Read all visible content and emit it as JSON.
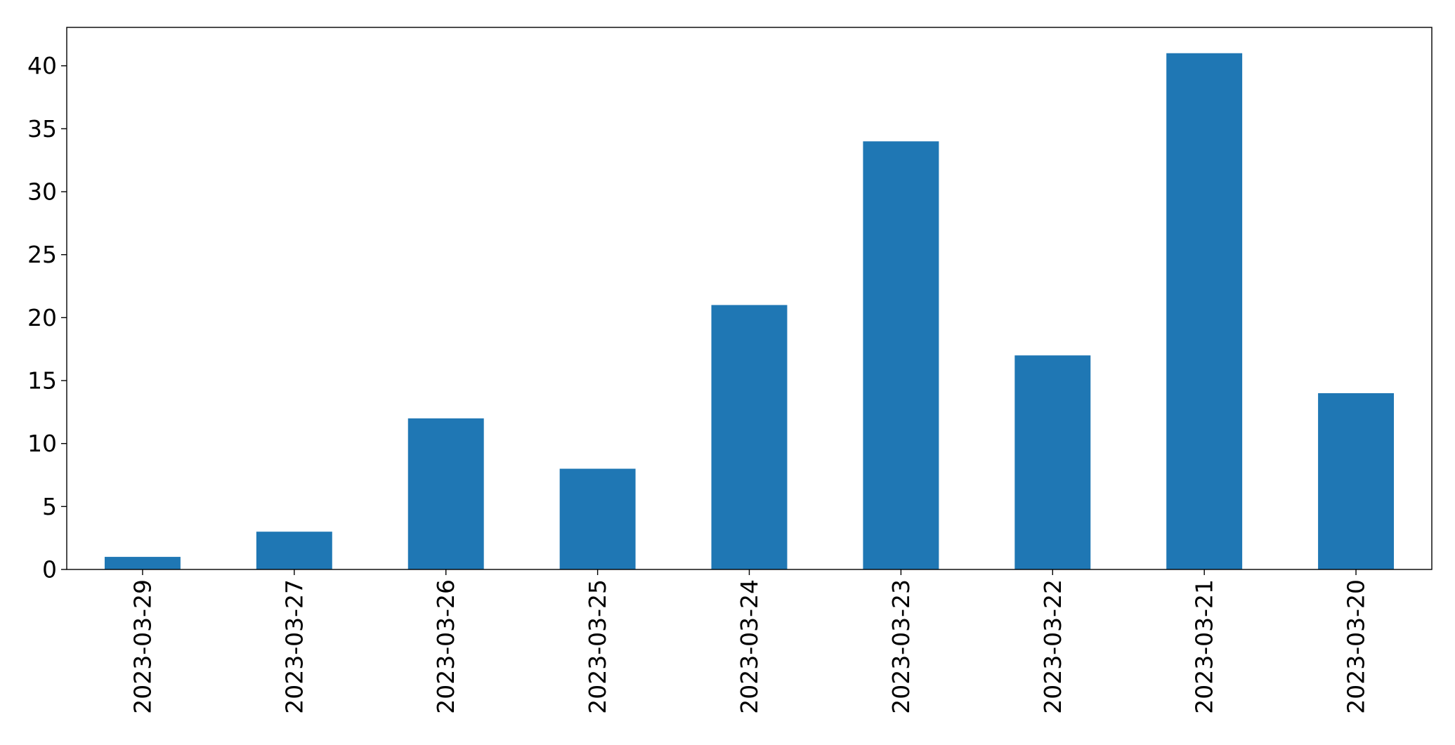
{
  "chart_data": {
    "type": "bar",
    "title": "",
    "xlabel": "",
    "ylabel": "",
    "categories": [
      "2023-03-29",
      "2023-03-27",
      "2023-03-26",
      "2023-03-25",
      "2023-03-24",
      "2023-03-23",
      "2023-03-22",
      "2023-03-21",
      "2023-03-20"
    ],
    "values": [
      1,
      3,
      12,
      8,
      21,
      34,
      17,
      41,
      14
    ],
    "ylim": [
      0,
      43.05
    ],
    "yticks": [
      0,
      5,
      10,
      15,
      20,
      25,
      30,
      35,
      40
    ],
    "ytick_labels": [
      "0",
      "5",
      "10",
      "15",
      "20",
      "25",
      "30",
      "35",
      "40"
    ],
    "bar_color": "#1f77b4",
    "grid": false,
    "legend": "none"
  }
}
